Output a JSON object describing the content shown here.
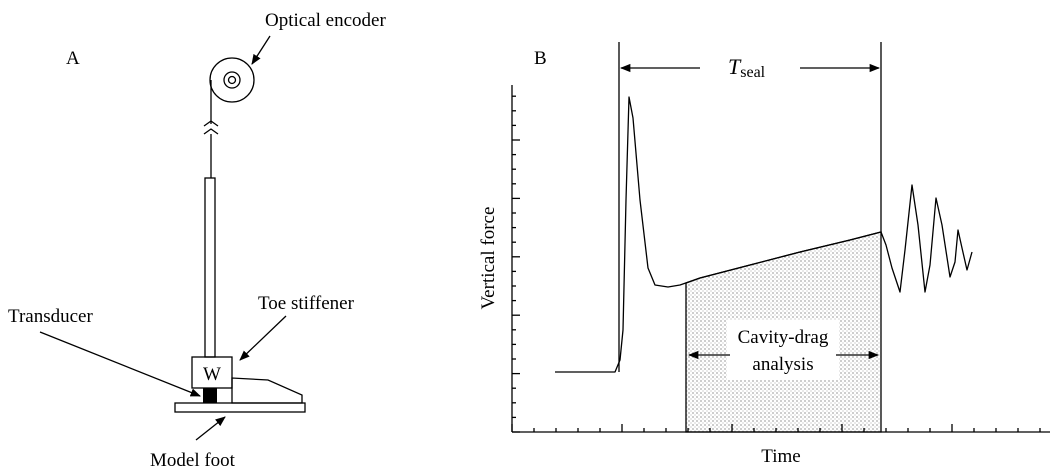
{
  "panel_a": {
    "label": "A",
    "encoder_label": "Optical encoder",
    "weight_label": "W",
    "transducer_label": "Transducer",
    "toe_label": "Toe stiffener",
    "foot_label": "Model foot"
  },
  "panel_b": {
    "label": "B",
    "period_symbol": "T",
    "period_subscript": "seal",
    "y_axis_label": "Vertical force",
    "x_axis_label": "Time",
    "region_label_line1": "Cavity-drag",
    "region_label_line2": "analysis"
  }
}
